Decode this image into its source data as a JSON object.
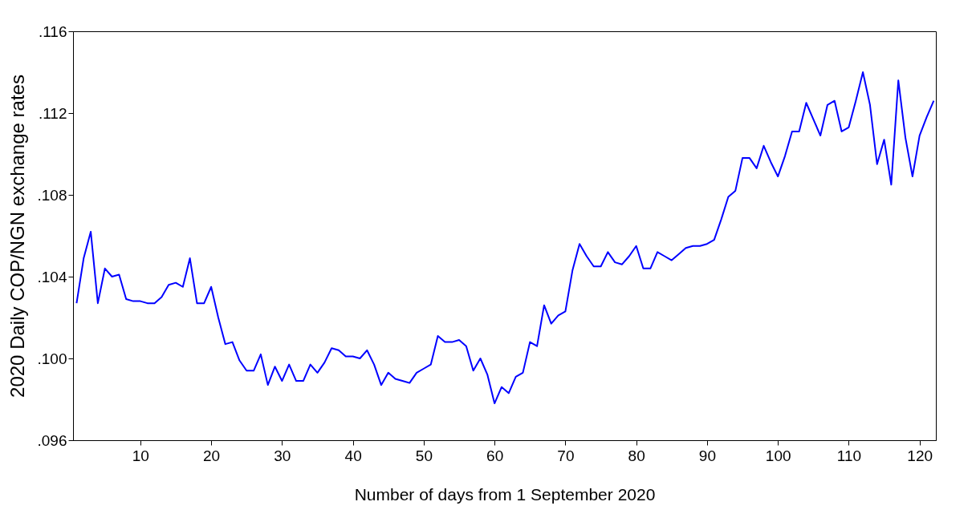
{
  "chart_data": {
    "type": "line",
    "xlabel": "Number of days from 1 September 2020",
    "ylabel": "2020 Daily COP/NGN exchange rates",
    "x": [
      1,
      2,
      3,
      4,
      5,
      6,
      7,
      8,
      9,
      10,
      11,
      12,
      13,
      14,
      15,
      16,
      17,
      18,
      19,
      20,
      21,
      22,
      23,
      24,
      25,
      26,
      27,
      28,
      29,
      30,
      31,
      32,
      33,
      34,
      35,
      36,
      37,
      38,
      39,
      40,
      41,
      42,
      43,
      44,
      45,
      46,
      47,
      48,
      49,
      50,
      51,
      52,
      53,
      54,
      55,
      56,
      57,
      58,
      59,
      60,
      61,
      62,
      63,
      64,
      65,
      66,
      67,
      68,
      69,
      70,
      71,
      72,
      73,
      74,
      75,
      76,
      77,
      78,
      79,
      80,
      81,
      82,
      83,
      84,
      85,
      86,
      87,
      88,
      89,
      90,
      91,
      92,
      93,
      94,
      95,
      96,
      97,
      98,
      99,
      100,
      101,
      102,
      103,
      104,
      105,
      106,
      107,
      108,
      109,
      110,
      111,
      112,
      113,
      114,
      115,
      116,
      117,
      118,
      119,
      120,
      121,
      122
    ],
    "series": [
      {
        "color": "#0000ff",
        "values": [
          0.1027,
          0.1049,
          0.1062,
          0.1027,
          0.1044,
          0.104,
          0.1041,
          0.1029,
          0.1028,
          0.1028,
          0.1027,
          0.1027,
          0.103,
          0.1036,
          0.1037,
          0.1035,
          0.1049,
          0.1027,
          0.1027,
          0.1035,
          0.102,
          0.1007,
          0.1008,
          0.0999,
          0.0994,
          0.0994,
          0.1002,
          0.0987,
          0.0996,
          0.0989,
          0.0997,
          0.0989,
          0.0989,
          0.0997,
          0.0993,
          0.0998,
          0.1005,
          0.1004,
          0.1001,
          0.1001,
          0.1,
          0.1004,
          0.0997,
          0.0987,
          0.0993,
          0.099,
          0.0989,
          0.0988,
          0.0993,
          0.0995,
          0.0997,
          0.1011,
          0.1008,
          0.1008,
          0.1009,
          0.1006,
          0.0994,
          0.1,
          0.0992,
          0.0978,
          0.0986,
          0.0983,
          0.0991,
          0.0993,
          0.1008,
          0.1006,
          0.1026,
          0.1017,
          0.1021,
          0.1023,
          0.1043,
          0.1056,
          0.105,
          0.1045,
          0.1045,
          0.1052,
          0.1047,
          0.1046,
          0.105,
          0.1055,
          0.1044,
          0.1044,
          0.1052,
          0.105,
          0.1048,
          0.1051,
          0.1054,
          0.1055,
          0.1055,
          0.1056,
          0.1058,
          0.1068,
          0.1079,
          0.1082,
          0.1098,
          0.1098,
          0.1093,
          0.1104,
          0.1096,
          0.1089,
          0.1099,
          0.1111,
          0.1111,
          0.1125,
          0.1117,
          0.1109,
          0.1124,
          0.1126,
          0.1111,
          0.1113,
          0.1126,
          0.114,
          0.1124,
          0.1095,
          0.1107,
          0.1085,
          0.1136,
          0.1108,
          0.1089,
          0.1109,
          0.1118,
          0.1126
        ]
      }
    ],
    "xlim": [
      0.5,
      122.3
    ],
    "xticks": [
      10,
      20,
      30,
      40,
      50,
      60,
      70,
      80,
      90,
      100,
      110,
      120
    ],
    "ylim": [
      0.096,
      0.116
    ],
    "yticks": [
      {
        "value": 0.096,
        "label": ".096"
      },
      {
        "value": 0.1,
        "label": ".100"
      },
      {
        "value": 0.104,
        "label": ".104"
      },
      {
        "value": 0.108,
        "label": ".108"
      },
      {
        "value": 0.112,
        "label": ".112"
      },
      {
        "value": 0.116,
        "label": ".116"
      }
    ],
    "grid": false,
    "marker": "none",
    "line_style": "solid"
  }
}
